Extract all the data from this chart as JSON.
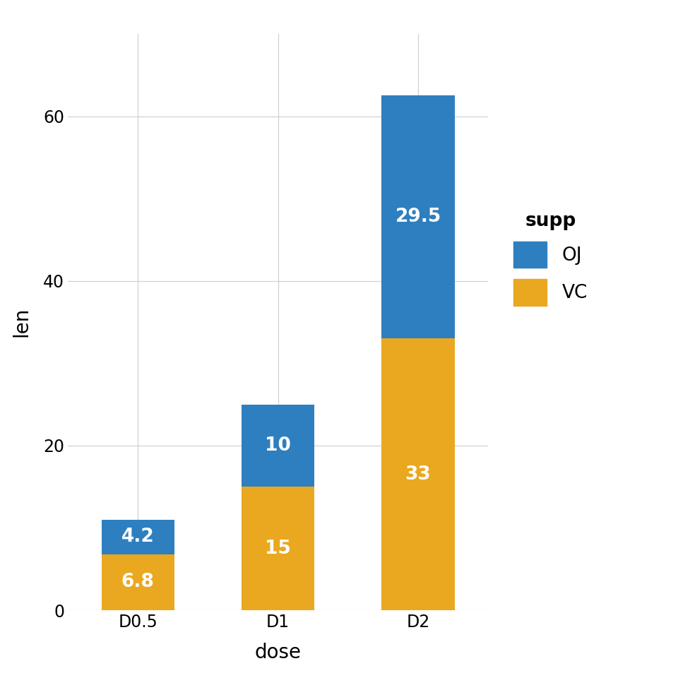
{
  "categories": [
    "D0.5",
    "D1",
    "D2"
  ],
  "vc_values": [
    6.8,
    15.0,
    33.0
  ],
  "oj_values": [
    4.2,
    10.0,
    29.5
  ],
  "vc_color": "#E9A820",
  "oj_color": "#2E7FBF",
  "xlabel": "dose",
  "ylabel": "len",
  "legend_title": "supp",
  "legend_labels": [
    "OJ",
    "VC"
  ],
  "vc_labels": [
    "6.8",
    "15",
    "33"
  ],
  "oj_labels": [
    "4.2",
    "10",
    "29.5"
  ],
  "ylim": [
    0,
    70
  ],
  "yticks": [
    0,
    20,
    40,
    60
  ],
  "label_fontsize": 20,
  "tick_fontsize": 17,
  "annotation_fontsize": 19,
  "legend_fontsize": 19,
  "background_color": "#FFFFFF",
  "panel_background": "#FFFFFF",
  "grid_color": "#D0D0D0",
  "bar_width": 0.52
}
